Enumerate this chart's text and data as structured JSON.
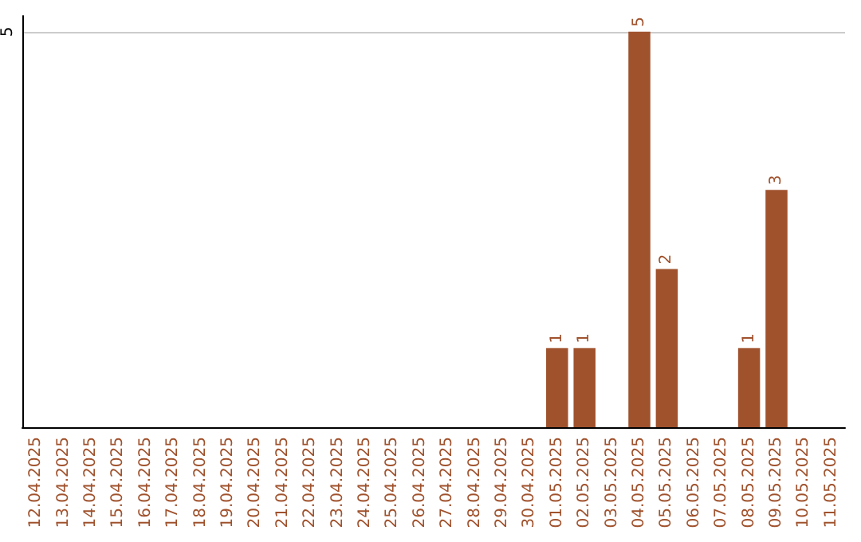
{
  "chart_data": {
    "type": "bar",
    "categories": [
      "12.04.2025",
      "13.04.2025",
      "14.04.2025",
      "15.04.2025",
      "16.04.2025",
      "17.04.2025",
      "18.04.2025",
      "19.04.2025",
      "20.04.2025",
      "21.04.2025",
      "22.04.2025",
      "23.04.2025",
      "24.04.2025",
      "25.04.2025",
      "26.04.2025",
      "27.04.2025",
      "28.04.2025",
      "29.04.2025",
      "30.04.2025",
      "01.05.2025",
      "02.05.2025",
      "03.05.2025",
      "04.05.2025",
      "05.05.2025",
      "06.05.2025",
      "07.05.2025",
      "08.05.2025",
      "09.05.2025",
      "10.05.2025",
      "11.05.2025"
    ],
    "values": [
      null,
      null,
      null,
      null,
      null,
      null,
      null,
      null,
      null,
      null,
      null,
      null,
      null,
      null,
      null,
      null,
      null,
      null,
      null,
      1,
      1,
      null,
      5,
      2,
      null,
      null,
      1,
      3,
      null,
      null
    ],
    "data_labels": true,
    "color": "#a0522d",
    "ylim": [
      0,
      5.2
    ],
    "yticks": [
      5
    ],
    "grid": "y"
  }
}
